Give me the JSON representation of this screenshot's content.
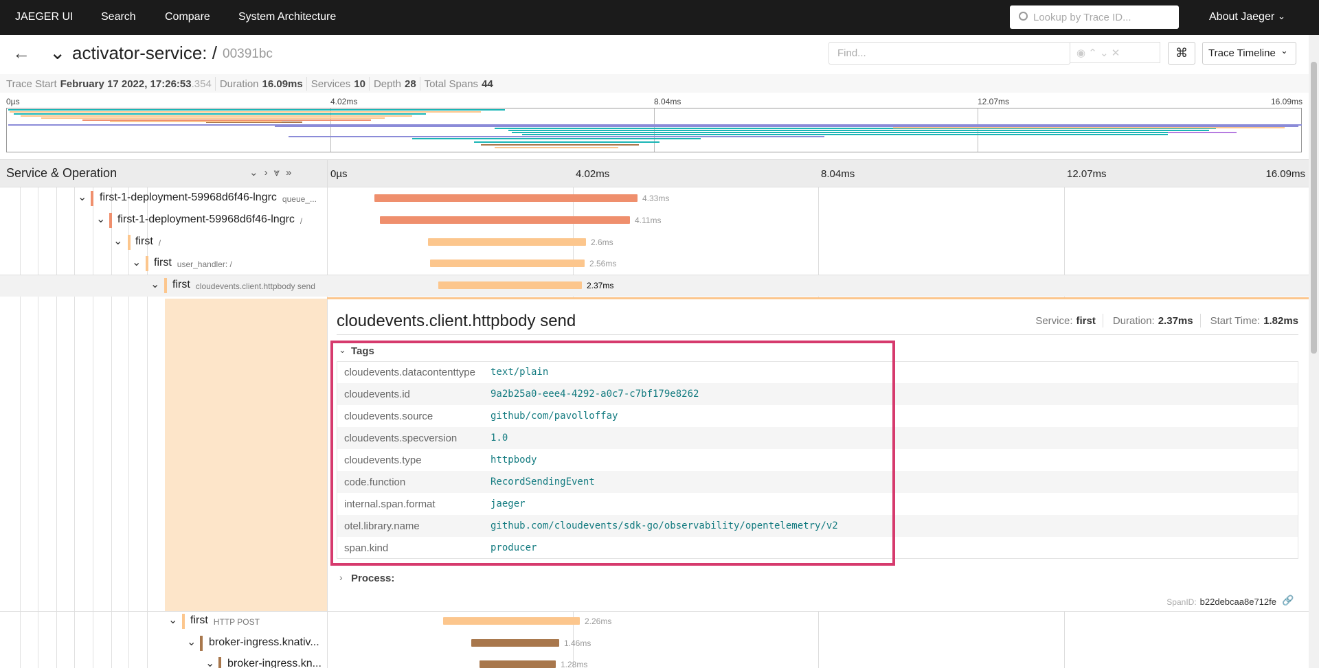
{
  "nav": {
    "brand": "JAEGER UI",
    "links": [
      "Search",
      "Compare",
      "System Architecture"
    ],
    "search_placeholder": "Lookup by Trace ID...",
    "about": "About Jaeger"
  },
  "header": {
    "title": "activator-service: /",
    "trace_id": "00391bc",
    "find_placeholder": "Find...",
    "view": "Trace Timeline"
  },
  "stats": [
    {
      "label": "Trace Start",
      "value": "February 17 2022, 17:26:53",
      "suffix": ".354"
    },
    {
      "label": "Duration",
      "value": "16.09ms"
    },
    {
      "label": "Services",
      "value": "10"
    },
    {
      "label": "Depth",
      "value": "28"
    },
    {
      "label": "Total Spans",
      "value": "44"
    }
  ],
  "minimap_ticks": [
    "0µs",
    "4.02ms",
    "8.04ms",
    "12.07ms",
    "16.09ms"
  ],
  "timeline": {
    "header": "Service & Operation",
    "ticks": [
      "0µs",
      "4.02ms",
      "8.04ms",
      "12.07ms",
      "16.09ms"
    ]
  },
  "spans": [
    {
      "service": "first-1-deployment-59968d6f46-lngrc",
      "operation": "queue_...",
      "duration": "4.33ms"
    },
    {
      "service": "first-1-deployment-59968d6f46-lngrc",
      "operation": "/",
      "duration": "4.11ms"
    },
    {
      "service": "first",
      "operation": "/",
      "duration": "2.6ms"
    },
    {
      "service": "first",
      "operation": "user_handler: /",
      "duration": "2.56ms"
    },
    {
      "service": "first",
      "operation": "cloudevents.client.httpbody send",
      "duration": "2.37ms"
    },
    {
      "service": "first",
      "operation": "HTTP POST",
      "duration": "2.26ms"
    },
    {
      "service": "broker-ingress.knativ...",
      "operation": "",
      "duration": "1.46ms"
    },
    {
      "service": "broker-ingress.kn...",
      "operation": "",
      "duration": "1.28ms"
    }
  ],
  "detail": {
    "operation": "cloudevents.client.httpbody send",
    "service_label": "Service:",
    "service": "first",
    "duration_label": "Duration:",
    "duration": "2.37ms",
    "start_label": "Start Time:",
    "start": "1.82ms",
    "tags_title": "Tags",
    "tags": [
      [
        "cloudevents.datacontenttype",
        "text/plain"
      ],
      [
        "cloudevents.id",
        "9a2b25a0-eee4-4292-a0c7-c7bf179e8262"
      ],
      [
        "cloudevents.source",
        "github/com/pavolloffay"
      ],
      [
        "cloudevents.specversion",
        "1.0"
      ],
      [
        "cloudevents.type",
        "httpbody"
      ],
      [
        "code.function",
        "RecordSendingEvent"
      ],
      [
        "internal.span.format",
        "jaeger"
      ],
      [
        "otel.library.name",
        "github.com/cloudevents/sdk-go/observability/opentelemetry/v2"
      ],
      [
        "span.kind",
        "producer"
      ]
    ],
    "process_title": "Process:",
    "span_id_label": "SpanID:",
    "span_id": "b22debcaa8e712fe"
  }
}
